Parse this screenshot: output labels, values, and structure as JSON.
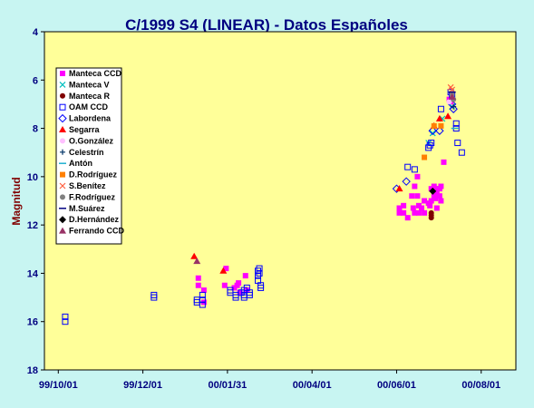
{
  "chart_data": {
    "type": "scatter",
    "title": "C/1999 S4 (LINEAR) - Datos Españoles",
    "ylabel": "Magnitud",
    "xlabel": "",
    "x_ticks": [
      "99/10/01",
      "99/12/01",
      "00/01/31",
      "00/04/01",
      "00/06/01",
      "00/08/01"
    ],
    "y_ticks": [
      "4",
      "6",
      "8",
      "10",
      "12",
      "14",
      "16",
      "18"
    ],
    "ylim": [
      18,
      4
    ],
    "y_inverted": true,
    "legend_position": "top-left",
    "plot_background": "#ffff99",
    "page_background": "#c8f5f2",
    "series": [
      {
        "name": "Manteca CCD",
        "marker": "square-filled",
        "color": "#ff00ff",
        "points": [
          [
            "2000-01-10",
            14.2
          ],
          [
            "2000-01-10",
            14.5
          ],
          [
            "2000-01-14",
            14.7
          ],
          [
            "2000-01-14",
            15.2
          ],
          [
            "2000-01-29",
            14.5
          ],
          [
            "2000-01-30",
            13.8
          ],
          [
            "2000-02-05",
            14.6
          ],
          [
            "2000-02-07",
            14.5
          ],
          [
            "2000-02-08",
            14.4
          ],
          [
            "2000-02-09",
            14.8
          ],
          [
            "2000-02-13",
            14.1
          ],
          [
            "2000-02-14",
            14.7
          ],
          [
            "2000-06-03",
            11.5
          ],
          [
            "2000-06-03",
            11.3
          ],
          [
            "2000-06-06",
            11.5
          ],
          [
            "2000-06-06",
            11.2
          ],
          [
            "2000-06-09",
            11.7
          ],
          [
            "2000-06-12",
            10.8
          ],
          [
            "2000-06-13",
            11.3
          ],
          [
            "2000-06-14",
            10.4
          ],
          [
            "2000-06-14",
            11.5
          ],
          [
            "2000-06-16",
            10.0
          ],
          [
            "2000-06-16",
            10.8
          ],
          [
            "2000-06-17",
            11.2
          ],
          [
            "2000-06-17",
            11.5
          ],
          [
            "2000-06-19",
            11.3
          ],
          [
            "2000-06-21",
            11.0
          ],
          [
            "2000-06-21",
            11.5
          ],
          [
            "2000-06-24",
            11.1
          ],
          [
            "2000-06-25",
            11.2
          ],
          [
            "2000-06-26",
            10.5
          ],
          [
            "2000-06-26",
            11.0
          ],
          [
            "2000-06-28",
            10.4
          ],
          [
            "2000-06-28",
            10.8
          ],
          [
            "2000-06-29",
            10.5
          ],
          [
            "2000-06-29",
            10.9
          ],
          [
            "2000-06-30",
            10.7
          ],
          [
            "2000-06-30",
            11.3
          ],
          [
            "2000-07-02",
            10.5
          ],
          [
            "2000-07-02",
            10.8
          ],
          [
            "2000-07-03",
            10.4
          ],
          [
            "2000-07-03",
            11.0
          ],
          [
            "2000-07-05",
            9.4
          ],
          [
            "2000-07-09",
            6.8
          ],
          [
            "2000-07-10",
            6.9
          ]
        ]
      },
      {
        "name": "Manteca V",
        "marker": "x",
        "color": "#00c0c0",
        "points": [
          [
            "2000-06-24",
            8.6
          ],
          [
            "2000-06-27",
            8.2
          ],
          [
            "2000-07-04",
            7.6
          ],
          [
            "2000-07-11",
            7.1
          ]
        ]
      },
      {
        "name": "Manteca R",
        "marker": "circle-filled",
        "color": "#800000",
        "points": [
          [
            "2000-06-26",
            11.5
          ],
          [
            "2000-06-26",
            11.7
          ],
          [
            "2000-06-26",
            11.6
          ]
        ]
      },
      {
        "name": "OAM CCD",
        "marker": "square-open",
        "color": "#0000ff",
        "points": [
          [
            "1999-10-06",
            15.8
          ],
          [
            "1999-10-06",
            16.0
          ],
          [
            "1999-12-09",
            14.9
          ],
          [
            "1999-12-09",
            15.0
          ],
          [
            "2000-01-09",
            15.1
          ],
          [
            "2000-01-09",
            15.2
          ],
          [
            "2000-01-13",
            14.9
          ],
          [
            "2000-01-13",
            15.1
          ],
          [
            "2000-01-13",
            15.3
          ],
          [
            "2000-02-02",
            14.7
          ],
          [
            "2000-02-02",
            14.8
          ],
          [
            "2000-02-06",
            15.0
          ],
          [
            "2000-02-06",
            14.9
          ],
          [
            "2000-02-10",
            14.8
          ],
          [
            "2000-02-12",
            14.7
          ],
          [
            "2000-02-12",
            14.9
          ],
          [
            "2000-02-12",
            15.0
          ],
          [
            "2000-02-14",
            14.6
          ],
          [
            "2000-02-16",
            14.8
          ],
          [
            "2000-02-16",
            14.9
          ],
          [
            "2000-02-22",
            14.3
          ],
          [
            "2000-02-22",
            14.1
          ],
          [
            "2000-02-22",
            13.9
          ],
          [
            "2000-02-23",
            13.8
          ],
          [
            "2000-02-23",
            14.0
          ],
          [
            "2000-02-24",
            14.5
          ],
          [
            "2000-02-24",
            14.6
          ],
          [
            "2000-06-09",
            9.6
          ],
          [
            "2000-06-14",
            9.7
          ],
          [
            "2000-06-24",
            8.8
          ],
          [
            "2000-06-25",
            8.7
          ],
          [
            "2000-06-26",
            8.6
          ],
          [
            "2000-07-03",
            7.2
          ],
          [
            "2000-07-10",
            6.5
          ],
          [
            "2000-07-11",
            6.6
          ],
          [
            "2000-07-14",
            7.8
          ],
          [
            "2000-07-14",
            8.0
          ],
          [
            "2000-07-15",
            8.6
          ],
          [
            "2000-07-18",
            9.0
          ]
        ]
      },
      {
        "name": "Labordena",
        "marker": "diamond-open",
        "color": "#0000ff",
        "points": [
          [
            "2000-06-01",
            10.5
          ],
          [
            "2000-06-08",
            10.2
          ],
          [
            "2000-06-27",
            8.1
          ],
          [
            "2000-07-02",
            8.1
          ],
          [
            "2000-07-11",
            7.0
          ],
          [
            "2000-07-12",
            7.2
          ]
        ]
      },
      {
        "name": "Segarra",
        "marker": "triangle-filled",
        "color": "#ff0000",
        "points": [
          [
            "2000-01-07",
            13.3
          ],
          [
            "2000-01-28",
            13.9
          ],
          [
            "2000-06-03",
            10.5
          ],
          [
            "2000-06-28",
            7.9
          ],
          [
            "2000-07-02",
            7.6
          ],
          [
            "2000-07-08",
            7.5
          ],
          [
            "2000-07-10",
            6.8
          ]
        ]
      },
      {
        "name": "O.González",
        "marker": "circle-filled",
        "color": "#ffc0ff",
        "points": [
          [
            "2000-07-09",
            6.9
          ]
        ]
      },
      {
        "name": "Celestrín",
        "marker": "plus",
        "color": "#003366",
        "points": [
          [
            "2000-07-12",
            7.1
          ]
        ]
      },
      {
        "name": "Antón",
        "marker": "dash",
        "color": "#20b0d0",
        "points": [
          [
            "2000-07-13",
            8.0
          ]
        ]
      },
      {
        "name": "D.Rodríguez",
        "marker": "square-filled",
        "color": "#ff8000",
        "points": [
          [
            "2000-06-21",
            9.2
          ],
          [
            "2000-06-28",
            7.9
          ],
          [
            "2000-07-03",
            7.9
          ]
        ]
      },
      {
        "name": "S.Benítez",
        "marker": "x",
        "color": "#ff6040",
        "points": [
          [
            "2000-07-10",
            6.3
          ],
          [
            "2000-07-11",
            6.4
          ]
        ]
      },
      {
        "name": "F.Rodríguez",
        "marker": "circle-filled",
        "color": "#808080",
        "points": [
          [
            "2000-07-11",
            6.6
          ],
          [
            "2000-07-12",
            6.8
          ]
        ]
      },
      {
        "name": "M.Suárez",
        "marker": "dash",
        "color": "#000080",
        "points": [
          [
            "2000-07-11",
            6.5
          ]
        ]
      },
      {
        "name": "D.Hernández",
        "marker": "diamond-filled",
        "color": "#000000",
        "points": [
          [
            "2000-06-27",
            10.6
          ]
        ]
      },
      {
        "name": "Ferrando CCD",
        "marker": "triangle-filled",
        "color": "#993366",
        "points": [
          [
            "2000-01-09",
            13.5
          ],
          [
            "2000-07-11",
            6.7
          ]
        ]
      }
    ]
  }
}
